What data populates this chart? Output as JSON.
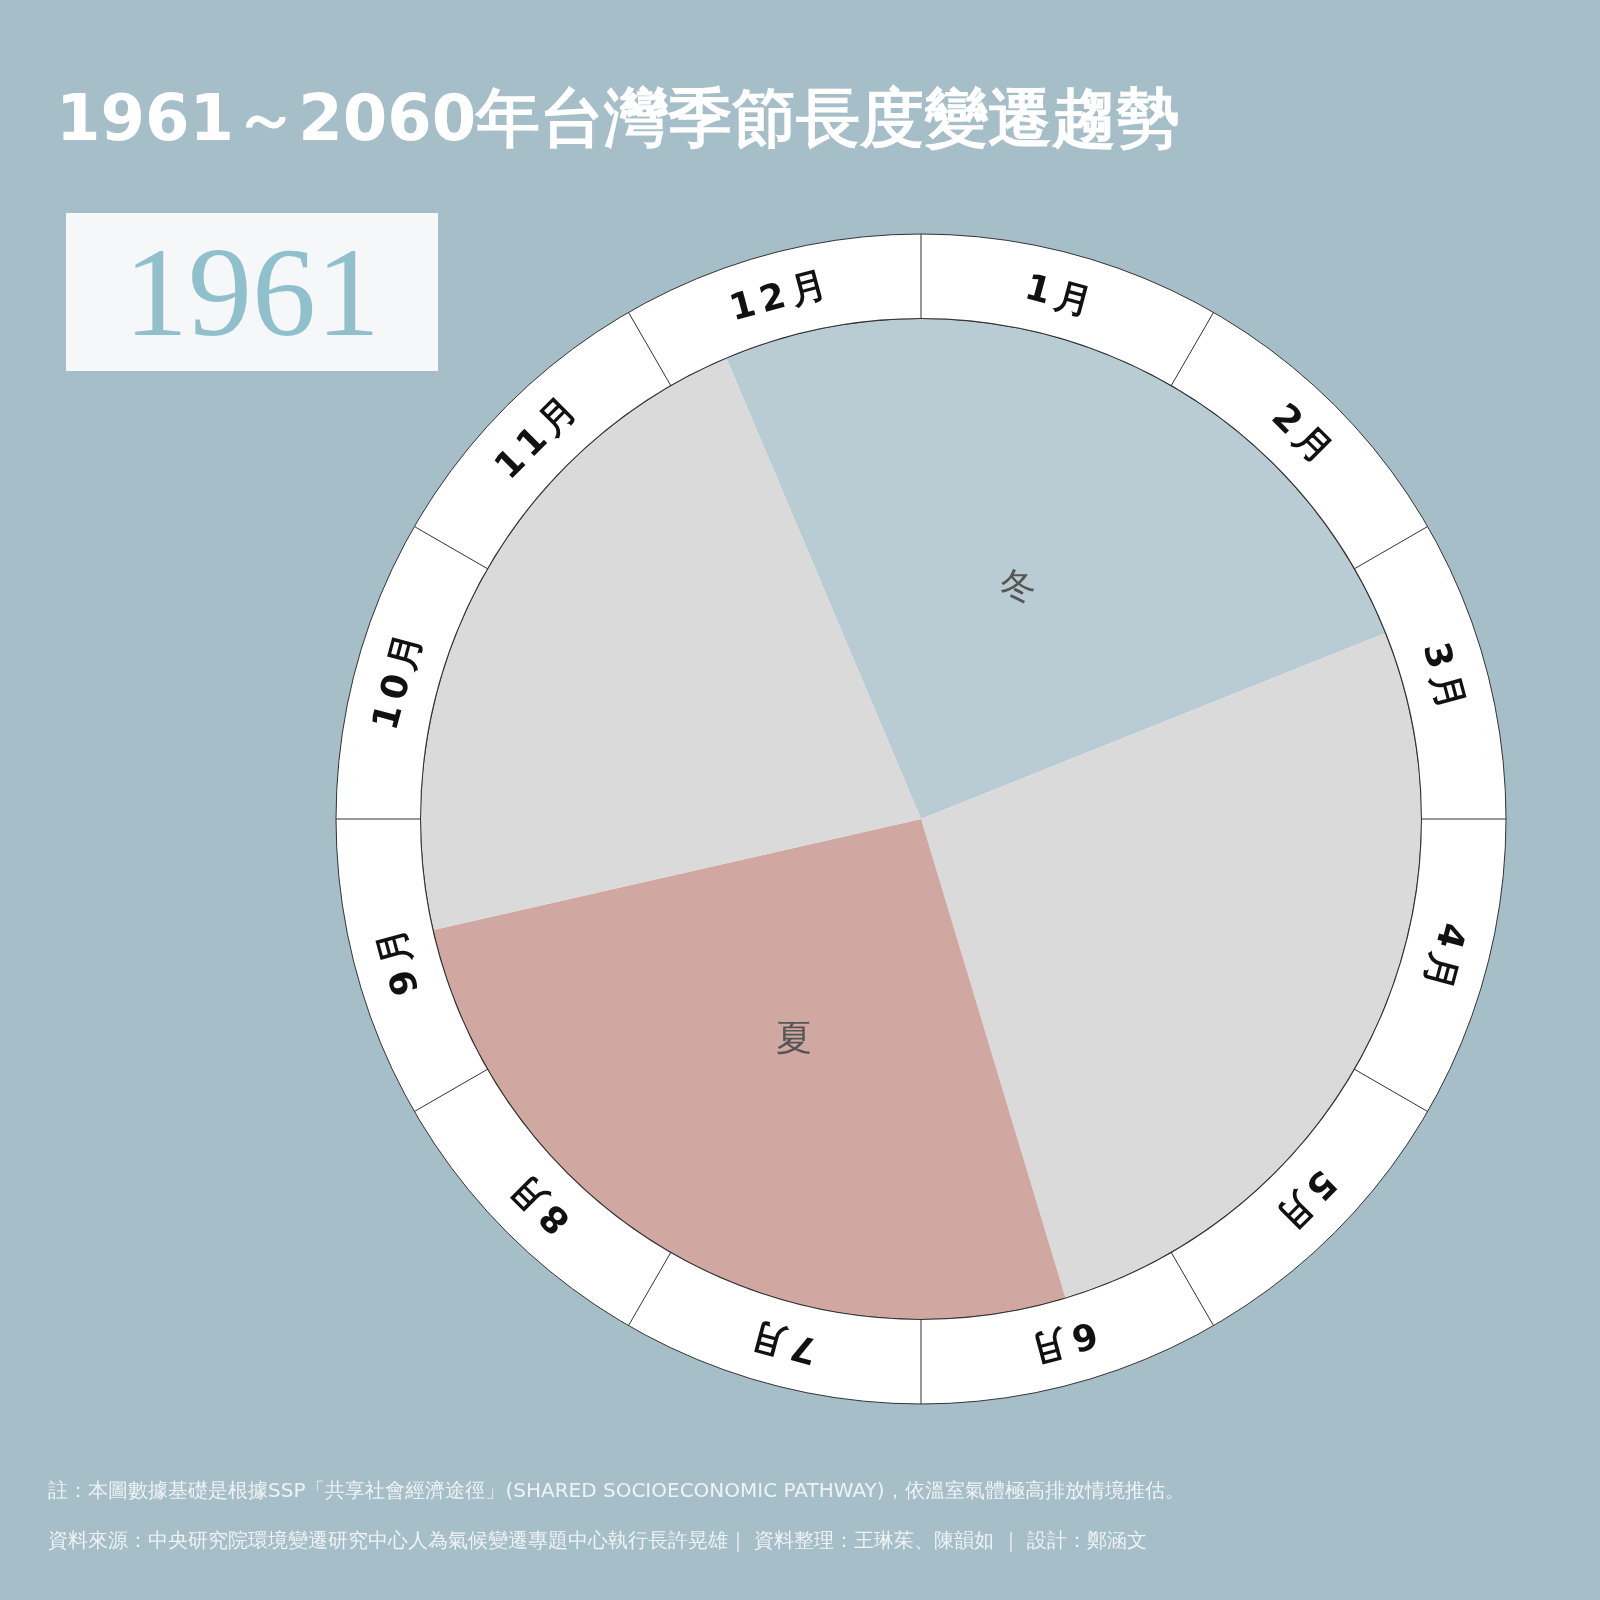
{
  "chart_data": [
    {
      "type": "pie",
      "title": "1961～2060年台灣季節長度變遷趨勢",
      "subtitle": "1961",
      "categories": [
        "冬",
        null,
        "夏",
        null
      ],
      "values": [
        25.3,
        26.4,
        26.1,
        22.2
      ],
      "colors": [
        "#b9ccd4",
        "#dadada",
        "#d0a7a1",
        "#dadada"
      ],
      "annotations": [
        "註：本圖數據基礎是根據SSP「共享社會經濟途徑」(SHARED SOCIOECONOMIC PATHWAY)，依溫室氣體極高排放情境推估。",
        "資料來源：中央研究院環境變遷研究中心人為氣候變遷專題中心執行長許晃雄｜ 資料整理：王琳茱、陳韻如 ｜ 設計：鄭涵文"
      ]
    },
    {
      "type": "other",
      "annotations": [
        "1月",
        "2月",
        "3月",
        "4月",
        "5月",
        "6月",
        "7月",
        "8月",
        "9月",
        "10月",
        "11月",
        "12月"
      ]
    }
  ]
}
